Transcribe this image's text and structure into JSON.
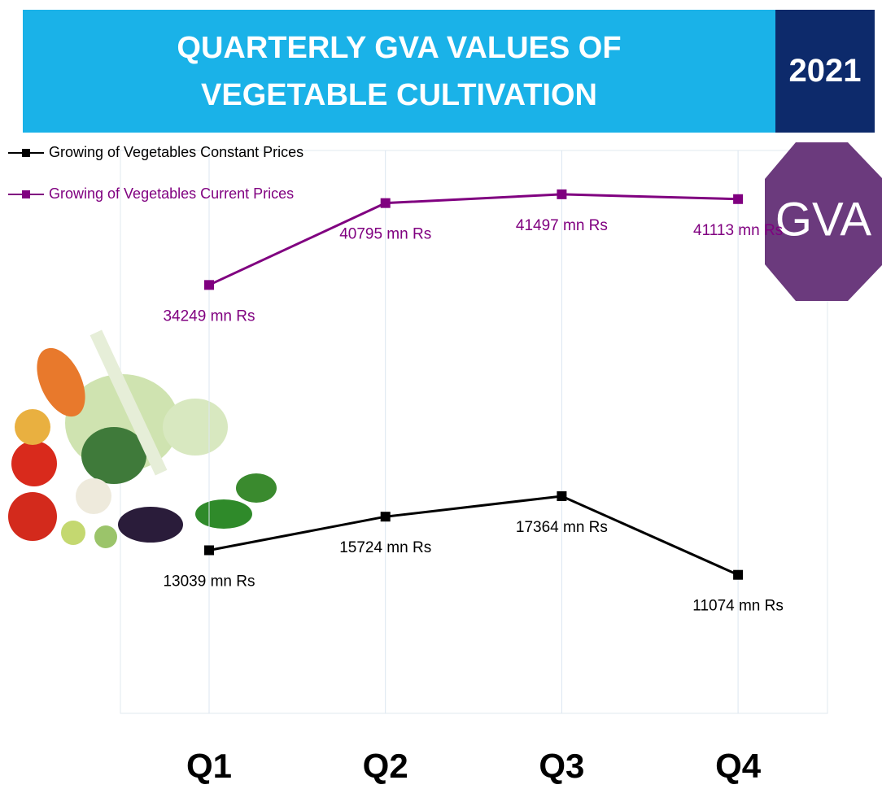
{
  "chart_data": {
    "type": "line",
    "title": "QUARTERLY GVA VALUES OF VEGETABLE CULTIVATION",
    "year": "2021",
    "badge": "GVA",
    "categories": [
      "Q1",
      "Q2",
      "Q3",
      "Q4"
    ],
    "series": [
      {
        "name": "Growing of Vegetables Constant Prices",
        "color": "#000000",
        "values": [
          13039,
          15724,
          17364,
          11074
        ],
        "value_labels": [
          "13039 mn Rs",
          "15724 mn Rs",
          "17364 mn Rs",
          "11074 mn Rs"
        ]
      },
      {
        "name": "Growing of Vegetables Current Prices",
        "color": "#800080",
        "values": [
          34249,
          40795,
          41497,
          41113
        ],
        "value_labels": [
          "34249 mn Rs",
          "40795 mn Rs",
          "41497 mn Rs",
          "41113 mn Rs"
        ]
      }
    ],
    "ylim": [
      0,
      45000
    ],
    "grid": true,
    "legend": "top-left"
  }
}
